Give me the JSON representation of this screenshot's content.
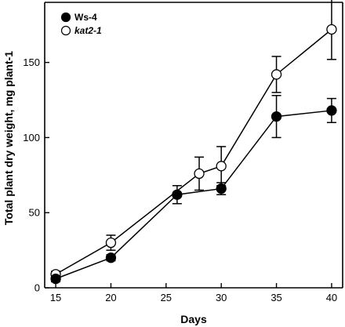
{
  "chart_data": {
    "type": "line",
    "xlabel": "Days",
    "ylabel": "Total plant dry weight, mg plant-1",
    "xlim": [
      14,
      41
    ],
    "ylim": [
      0,
      190
    ],
    "xticks": [
      15,
      20,
      25,
      30,
      35,
      40
    ],
    "yticks": [
      0,
      50,
      100,
      150
    ],
    "grid": false,
    "legend_position": "top-left",
    "series": [
      {
        "name": "Ws-4",
        "marker": "filled-circle",
        "color": "#000000",
        "x": [
          15,
          20,
          26,
          30,
          35,
          40
        ],
        "y": [
          6,
          20,
          62,
          66,
          114,
          118
        ],
        "err": [
          2,
          2,
          6,
          4,
          14,
          8
        ]
      },
      {
        "name": "kat2-1",
        "marker": "open-circle",
        "color": "#000000",
        "x": [
          15,
          20,
          28,
          30,
          35,
          40
        ],
        "y": [
          9,
          30,
          76,
          81,
          142,
          172
        ],
        "err": [
          2,
          5,
          11,
          13,
          12,
          20
        ]
      }
    ]
  }
}
